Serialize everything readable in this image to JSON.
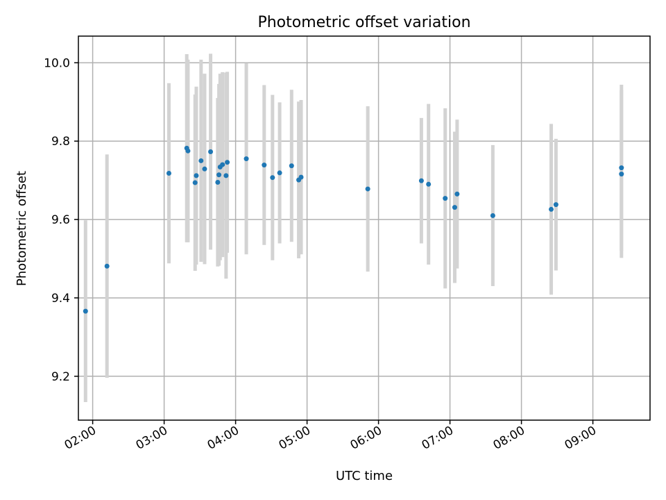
{
  "chart_data": {
    "type": "scatter",
    "title": "Photometric offset variation",
    "xlabel": "UTC time",
    "ylabel": "Photometric offset",
    "xlim": [
      "01:48",
      "09:48"
    ],
    "ylim": [
      9.088,
      10.068
    ],
    "x_ticks": [
      "02:00",
      "03:00",
      "04:00",
      "05:00",
      "06:00",
      "07:00",
      "08:00",
      "09:00"
    ],
    "y_ticks": [
      9.2,
      9.4,
      9.6,
      9.8,
      10.0
    ],
    "y_tick_labels": [
      "9.2",
      "9.4",
      "9.6",
      "9.8",
      "10.0"
    ],
    "grid": true,
    "marker_color": "#1f77b4",
    "errorbar_color": "#d3d3d3",
    "points": [
      {
        "x": "01:54",
        "y": 9.366,
        "err": 0.232
      },
      {
        "x": "02:12",
        "y": 9.481,
        "err": 0.285
      },
      {
        "x": "03:04",
        "y": 9.718,
        "err": 0.23
      },
      {
        "x": "03:19",
        "y": 9.782,
        "err": 0.24
      },
      {
        "x": "03:20",
        "y": 9.775,
        "err": 0.233
      },
      {
        "x": "03:26",
        "y": 9.694,
        "err": 0.225
      },
      {
        "x": "03:27",
        "y": 9.712,
        "err": 0.227
      },
      {
        "x": "03:31",
        "y": 9.75,
        "err": 0.258
      },
      {
        "x": "03:34",
        "y": 9.729,
        "err": 0.243
      },
      {
        "x": "03:39",
        "y": 9.773,
        "err": 0.25
      },
      {
        "x": "03:45",
        "y": 9.695,
        "err": 0.215
      },
      {
        "x": "03:46",
        "y": 9.714,
        "err": 0.232
      },
      {
        "x": "03:47",
        "y": 9.734,
        "err": 0.238
      },
      {
        "x": "03:49",
        "y": 9.74,
        "err": 0.236
      },
      {
        "x": "03:52",
        "y": 9.712,
        "err": 0.263
      },
      {
        "x": "03:53",
        "y": 9.746,
        "err": 0.231
      },
      {
        "x": "04:09",
        "y": 9.755,
        "err": 0.244
      },
      {
        "x": "04:24",
        "y": 9.739,
        "err": 0.204
      },
      {
        "x": "04:31",
        "y": 9.707,
        "err": 0.211
      },
      {
        "x": "04:37",
        "y": 9.719,
        "err": 0.18
      },
      {
        "x": "04:47",
        "y": 9.737,
        "err": 0.194
      },
      {
        "x": "04:53",
        "y": 9.701,
        "err": 0.2
      },
      {
        "x": "04:55",
        "y": 9.708,
        "err": 0.197
      },
      {
        "x": "05:51",
        "y": 9.678,
        "err": 0.211
      },
      {
        "x": "06:36",
        "y": 9.699,
        "err": 0.16
      },
      {
        "x": "06:42",
        "y": 9.69,
        "err": 0.205
      },
      {
        "x": "06:56",
        "y": 9.654,
        "err": 0.23
      },
      {
        "x": "07:04",
        "y": 9.631,
        "err": 0.193
      },
      {
        "x": "07:06",
        "y": 9.665,
        "err": 0.19
      },
      {
        "x": "07:36",
        "y": 9.61,
        "err": 0.18
      },
      {
        "x": "08:25",
        "y": 9.626,
        "err": 0.218
      },
      {
        "x": "08:29",
        "y": 9.638,
        "err": 0.168
      },
      {
        "x": "09:24",
        "y": 9.732,
        "err": 0.212
      },
      {
        "x": "09:24",
        "y": 9.716,
        "err": 0.214
      }
    ]
  }
}
